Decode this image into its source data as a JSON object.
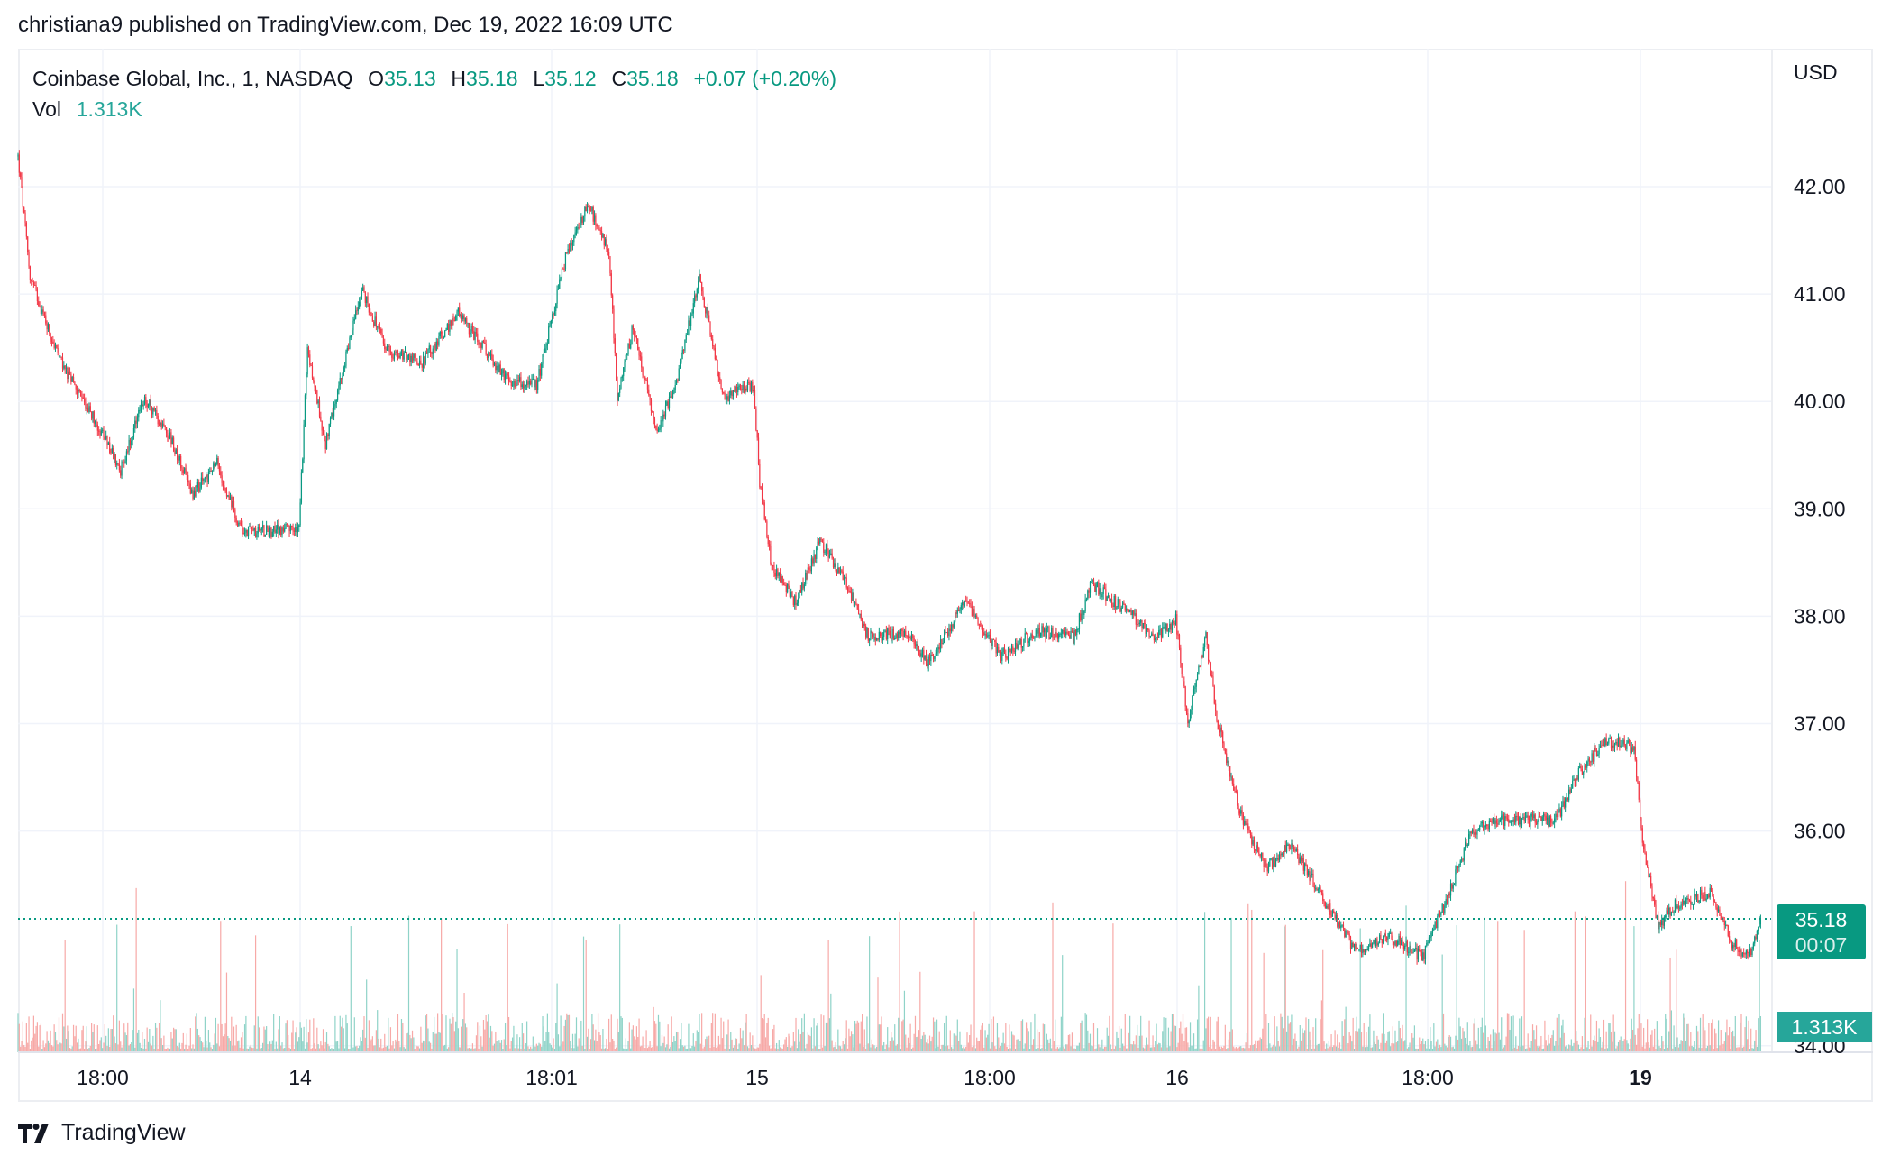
{
  "header": {
    "published": "christiana9 published on TradingView.com, Dec 19, 2022 16:09 UTC"
  },
  "legend": {
    "symbol": "Coinbase Global, Inc., 1, NASDAQ",
    "o_label": "O",
    "o": "35.13",
    "h_label": "H",
    "h": "35.18",
    "l_label": "L",
    "l": "35.12",
    "c_label": "C",
    "c": "35.18",
    "change": "+0.07 (+0.20%)",
    "vol_label": "Vol",
    "vol": "1.313K"
  },
  "price_axis": {
    "currency": "USD",
    "ticks": [
      "42.00",
      "41.00",
      "40.00",
      "39.00",
      "38.00",
      "37.00",
      "36.00",
      "34.00"
    ]
  },
  "time_axis": {
    "ticks": [
      "18:00",
      "14",
      "18:01",
      "15",
      "18:00",
      "16",
      "18:00",
      "19"
    ]
  },
  "last_price": {
    "price": "35.18",
    "countdown": "00:07",
    "volume": "1.313K"
  },
  "colors": {
    "up": "#089981",
    "down": "#f23645",
    "vol_up": "#8fd3c8",
    "vol_down": "#f7a9a7"
  },
  "footer": {
    "brand": "TradingView"
  },
  "chart_data": {
    "type": "candlestick",
    "interval": "1 minute",
    "ylim": [
      34,
      42.4
    ],
    "grid": true,
    "price_path": [
      [
        0,
        42.28
      ],
      [
        10,
        41.16
      ],
      [
        35,
        40.37
      ],
      [
        65,
        39.8
      ],
      [
        85,
        39.36
      ],
      [
        105,
        40.03
      ],
      [
        125,
        39.7
      ],
      [
        145,
        39.14
      ],
      [
        165,
        39.42
      ],
      [
        185,
        38.8
      ],
      [
        215,
        38.8
      ],
      [
        233,
        38.8
      ],
      [
        240,
        40.48
      ],
      [
        255,
        39.6
      ],
      [
        285,
        41.05
      ],
      [
        305,
        40.48
      ],
      [
        335,
        40.37
      ],
      [
        365,
        40.82
      ],
      [
        405,
        40.2
      ],
      [
        430,
        40.15
      ],
      [
        455,
        41.38
      ],
      [
        473,
        41.83
      ],
      [
        490,
        41.38
      ],
      [
        497,
        40.03
      ],
      [
        510,
        40.7
      ],
      [
        530,
        39.7
      ],
      [
        545,
        40.15
      ],
      [
        565,
        41.16
      ],
      [
        585,
        40.03
      ],
      [
        610,
        40.15
      ],
      [
        615,
        39.25
      ],
      [
        625,
        38.47
      ],
      [
        645,
        38.13
      ],
      [
        665,
        38.7
      ],
      [
        685,
        38.36
      ],
      [
        705,
        37.8
      ],
      [
        735,
        37.86
      ],
      [
        755,
        37.58
      ],
      [
        785,
        38.13
      ],
      [
        815,
        37.63
      ],
      [
        845,
        37.86
      ],
      [
        875,
        37.8
      ],
      [
        890,
        38.3
      ],
      [
        915,
        38.08
      ],
      [
        945,
        37.8
      ],
      [
        960,
        37.97
      ],
      [
        970,
        37.0
      ],
      [
        985,
        37.8
      ],
      [
        995,
        37.0
      ],
      [
        1015,
        36.1
      ],
      [
        1035,
        35.65
      ],
      [
        1055,
        35.88
      ],
      [
        1085,
        35.32
      ],
      [
        1110,
        34.87
      ],
      [
        1135,
        35.04
      ],
      [
        1165,
        34.82
      ],
      [
        1185,
        35.38
      ],
      [
        1205,
        35.99
      ],
      [
        1225,
        36.1
      ],
      [
        1255,
        36.1
      ],
      [
        1275,
        36.1
      ],
      [
        1295,
        36.55
      ],
      [
        1315,
        36.83
      ],
      [
        1340,
        36.78
      ],
      [
        1347,
        35.88
      ],
      [
        1360,
        35.1
      ],
      [
        1375,
        35.32
      ],
      [
        1405,
        35.43
      ],
      [
        1420,
        34.98
      ],
      [
        1435,
        34.82
      ],
      [
        1445,
        35.18
      ]
    ],
    "last_volume": "1.313K"
  }
}
